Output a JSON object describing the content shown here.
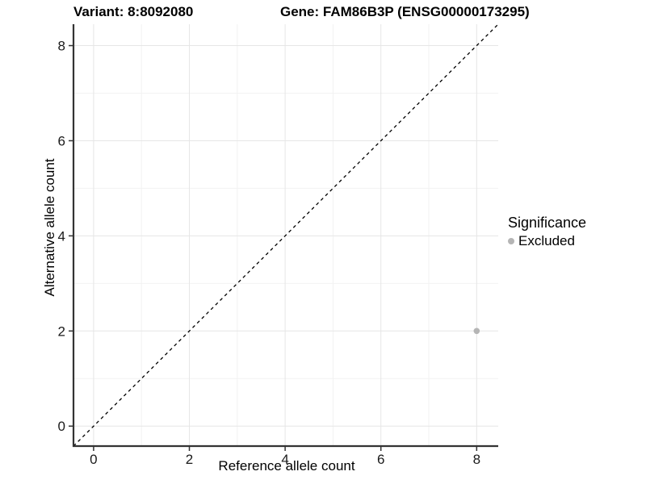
{
  "chart_data": {
    "type": "scatter",
    "titles": {
      "left": "Variant: 8:8092080",
      "right": "Gene: FAM86B3P (ENSG00000173295)"
    },
    "xlabel": "Reference allele count",
    "ylabel": "Alternative allele count",
    "xlim": [
      -0.42,
      8.45
    ],
    "ylim": [
      -0.42,
      8.45
    ],
    "xticks": [
      0,
      2,
      4,
      6,
      8
    ],
    "yticks": [
      0,
      2,
      4,
      6,
      8
    ],
    "minor_xticks": [
      1,
      3,
      5,
      7
    ],
    "minor_yticks": [
      1,
      3,
      5,
      7
    ],
    "grid": true,
    "points": [
      {
        "x": 8,
        "y": 2,
        "series": "Excluded"
      }
    ],
    "abline": {
      "slope": 1,
      "intercept": 0,
      "style": "dashed"
    },
    "legend": {
      "title": "Significance",
      "position": "right",
      "entries": [
        {
          "label": "Excluded",
          "color": "#b5b5b5"
        }
      ]
    },
    "colors": {
      "background": "#ffffff",
      "point": "#b5b5b5",
      "abline": "#000000",
      "axis_line": "#333333",
      "tick_mark": "#333333",
      "tick_label": "#1a1a1a",
      "grid_major": "#e6e6e6",
      "grid_minor": "#f2f2f2"
    }
  }
}
